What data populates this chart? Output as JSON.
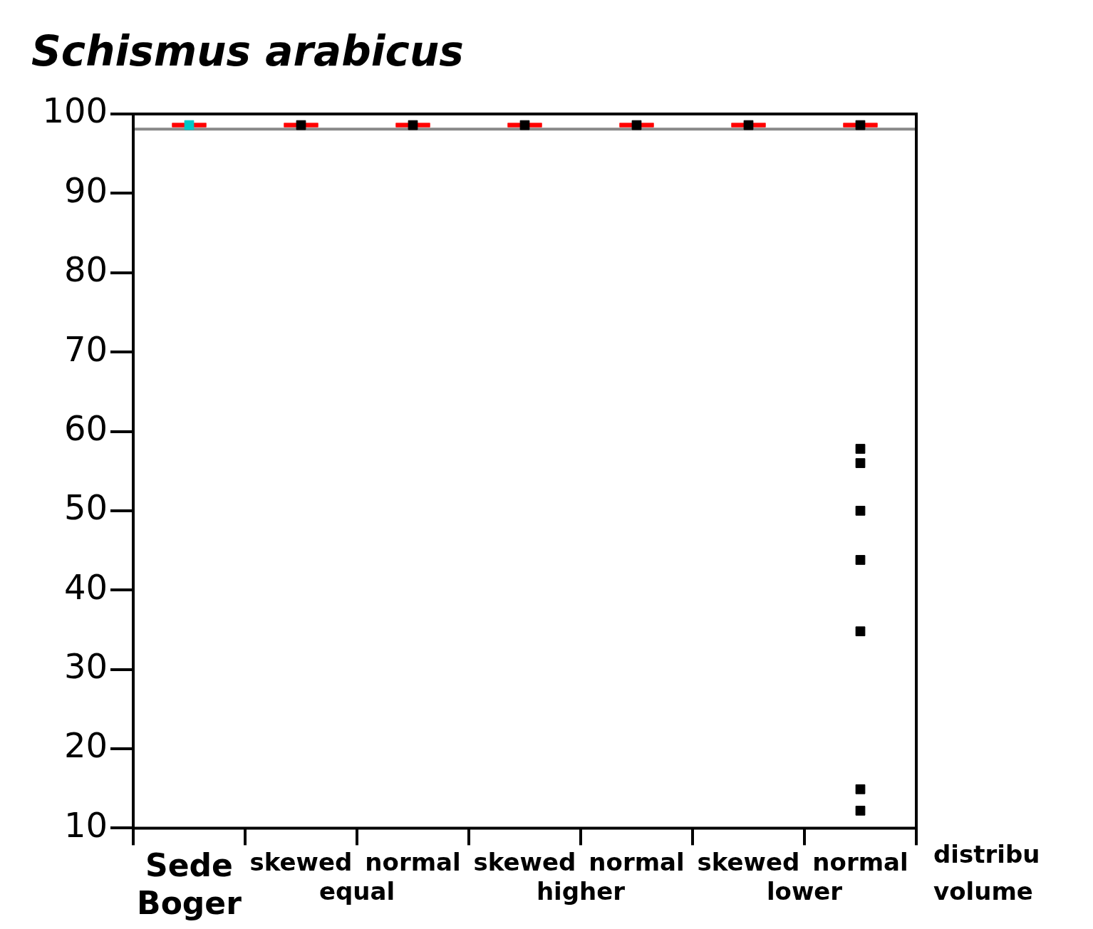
{
  "chart_data": {
    "type": "scatter",
    "title": "Schismus arabicus",
    "categories": [
      "Sede Boger",
      "skewed",
      "normal",
      "skewed",
      "normal",
      "skewed",
      "normal"
    ],
    "ylim": [
      10,
      100
    ],
    "yticks": [
      10,
      20,
      30,
      40,
      50,
      60,
      70,
      80,
      90,
      100
    ],
    "legend": false,
    "ref_lines": [
      {
        "axis": "y",
        "value": 98.1,
        "color": "#888888"
      }
    ],
    "annotations": [
      "equal",
      "higher",
      "lower",
      "distribu",
      "volume"
    ],
    "series": [
      {
        "type": "box",
        "color": "#ff0000",
        "boxes": [
          {
            "low": 98.35,
            "q1": 98.35,
            "median": 98.6,
            "q3": 98.85,
            "high": 98.85
          },
          {
            "low": 98.35,
            "q1": 98.35,
            "median": 98.6,
            "q3": 98.85,
            "high": 98.85
          },
          {
            "low": 98.35,
            "q1": 98.35,
            "median": 98.6,
            "q3": 98.85,
            "high": 98.85
          },
          {
            "low": 98.35,
            "q1": 98.35,
            "median": 98.6,
            "q3": 98.85,
            "high": 98.85
          },
          {
            "low": 98.35,
            "q1": 98.35,
            "median": 98.6,
            "q3": 98.85,
            "high": 98.85
          },
          {
            "low": 98.35,
            "q1": 98.35,
            "median": 98.6,
            "q3": 98.85,
            "high": 98.85
          },
          {
            "low": 98.35,
            "q1": 98.35,
            "median": 98.6,
            "q3": 98.85,
            "high": 98.85
          }
        ]
      },
      {
        "color": "#00c8c8",
        "marker": "square",
        "values": [
          98.6,
          null,
          null,
          null,
          null,
          null,
          null
        ]
      },
      {
        "color": "#000000",
        "marker": "square",
        "values": [
          null,
          98.6,
          98.6,
          98.6,
          98.6,
          98.6,
          98.6
        ]
      },
      {
        "color": "#000000",
        "marker": "square",
        "values": [
          null,
          null,
          null,
          null,
          null,
          null,
          57.8
        ]
      },
      {
        "color": "#000000",
        "marker": "square",
        "values": [
          null,
          null,
          null,
          null,
          null,
          null,
          56.0
        ]
      },
      {
        "color": "#000000",
        "marker": "square",
        "values": [
          null,
          null,
          null,
          null,
          null,
          null,
          50.0
        ]
      },
      {
        "color": "#000000",
        "marker": "square",
        "values": [
          null,
          null,
          null,
          null,
          null,
          null,
          43.8
        ]
      },
      {
        "color": "#000000",
        "marker": "square",
        "values": [
          null,
          null,
          null,
          null,
          null,
          null,
          34.8
        ]
      },
      {
        "color": "#000000",
        "marker": "square",
        "values": [
          null,
          null,
          null,
          null,
          null,
          null,
          14.9
        ]
      },
      {
        "color": "#000000",
        "marker": "square",
        "values": [
          null,
          null,
          null,
          null,
          null,
          null,
          12.2
        ]
      }
    ]
  }
}
